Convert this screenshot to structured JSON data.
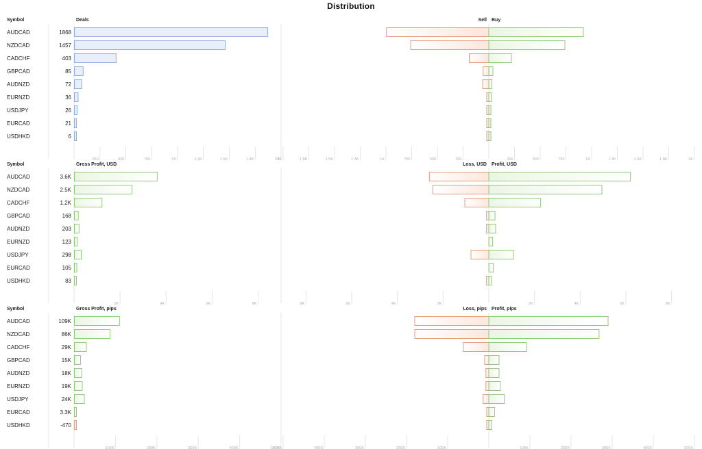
{
  "title": "Distribution",
  "colors": {
    "blue_fill": "#e8eefa",
    "blue_stroke": "#8eaee0",
    "green_fill": "#ebf6e4",
    "green_stroke": "#8fca7a",
    "red_fill": "#fbe7dd",
    "red_stroke": "#e59a80",
    "grid": "#e6e6e6",
    "tick": "#b0b0b0"
  },
  "chart_data": [
    {
      "type": "bar",
      "symbol_header": "Symbol",
      "left_header": "Deals",
      "left_label": "Sell",
      "right_label": "Buy",
      "categories": [
        "AUDCAD",
        "NZDCAD",
        "CADCHF",
        "GBPCAD",
        "AUDNZD",
        "EURNZD",
        "USDJPY",
        "EURCAD",
        "USDHKD"
      ],
      "value_labels": [
        "1868",
        "1457",
        "403",
        "85",
        "72",
        "36",
        "26",
        "21",
        "6"
      ],
      "series": [
        {
          "name": "Deals",
          "values": [
            1868,
            1457,
            403,
            85,
            72,
            36,
            26,
            21,
            6
          ]
        },
        {
          "name": "Sell",
          "values": [
            995,
            760,
            190,
            55,
            60,
            20,
            20,
            15,
            3
          ]
        },
        {
          "name": "Buy",
          "values": [
            920,
            740,
            220,
            40,
            30,
            25,
            10,
            20,
            5
          ]
        }
      ],
      "left_axis": {
        "max": 2000,
        "ticks": [
          250,
          500,
          750,
          1000,
          1250,
          1500,
          1750,
          2000
        ],
        "tick_labels": [
          "250",
          "500",
          "750",
          "1K",
          "1.3K",
          "1.5K",
          "1.8K",
          "2K"
        ]
      },
      "diverging_axis": {
        "max": 2000,
        "ticks": [
          250,
          500,
          750,
          1000,
          1250,
          1500,
          1750,
          2000
        ],
        "tick_labels": [
          "250",
          "500",
          "750",
          "1K",
          "1.3K",
          "1.5K",
          "1.8K",
          "2K"
        ]
      }
    },
    {
      "type": "bar",
      "symbol_header": "Symbol",
      "left_header": "Gross Profit, USD",
      "left_label": "Loss, USD",
      "right_label": "Profit, USD",
      "categories": [
        "AUDCAD",
        "NZDCAD",
        "CADCHF",
        "GBPCAD",
        "AUDNZD",
        "EURNZD",
        "USDJPY",
        "EURCAD",
        "USDHKD"
      ],
      "value_labels": [
        "3.6K",
        "2.5K",
        "1.2K",
        "168",
        "203",
        "123",
        "298",
        "105",
        "83"
      ],
      "series": [
        {
          "name": "Gross Profit, USD",
          "values": [
            3600,
            2500,
            1200,
            168,
            203,
            123,
            298,
            105,
            83
          ]
        },
        {
          "name": "Loss, USD",
          "values": [
            2600,
            2450,
            1050,
            100,
            100,
            0,
            780,
            0,
            100
          ]
        },
        {
          "name": "Profit, USD",
          "values": [
            6200,
            4950,
            2270,
            270,
            300,
            170,
            1080,
            200,
            110
          ]
        }
      ],
      "left_axis": {
        "max": 9000,
        "ticks": [
          2000,
          4000,
          6000,
          8000
        ],
        "tick_labels": [
          "2K",
          "4K",
          "6K",
          "8K"
        ]
      },
      "diverging_axis": {
        "max": 9000,
        "ticks": [
          2000,
          4000,
          6000,
          8000
        ],
        "tick_labels": [
          "2K",
          "4K",
          "6K",
          "8K"
        ]
      }
    },
    {
      "type": "bar",
      "symbol_header": "Symbol",
      "left_header": "Gross Profit, pips",
      "left_label": "Loss, pips",
      "right_label": "Profit, pips",
      "categories": [
        "AUDCAD",
        "NZDCAD",
        "CADCHF",
        "GBPCAD",
        "AUDNZD",
        "EURNZD",
        "USDJPY",
        "EURCAD",
        "USDHKD"
      ],
      "value_labels": [
        "109K",
        "86K",
        "29K",
        "15K",
        "18K",
        "19K",
        "24K",
        "3.3K",
        "-470"
      ],
      "series": [
        {
          "name": "Gross Profit, pips",
          "values": [
            109000,
            86000,
            29000,
            15000,
            18000,
            19000,
            24000,
            3300,
            -470
          ]
        },
        {
          "name": "Loss, pips",
          "values": [
            180000,
            180000,
            62000,
            10000,
            7000,
            7000,
            14000,
            3000,
            5000
          ]
        },
        {
          "name": "Profit, pips",
          "values": [
            290000,
            268000,
            92000,
            25000,
            25000,
            28000,
            38000,
            14000,
            7000
          ]
        }
      ],
      "left_axis": {
        "max": 500000,
        "ticks": [
          100000,
          200000,
          300000,
          400000,
          500000
        ],
        "tick_labels": [
          "100K",
          "200K",
          "300K",
          "400K",
          "500K"
        ]
      },
      "diverging_axis": {
        "max": 500000,
        "ticks": [
          100000,
          200000,
          300000,
          400000,
          500000
        ],
        "tick_labels": [
          "100K",
          "200K",
          "300K",
          "400K",
          "500K"
        ]
      }
    }
  ]
}
